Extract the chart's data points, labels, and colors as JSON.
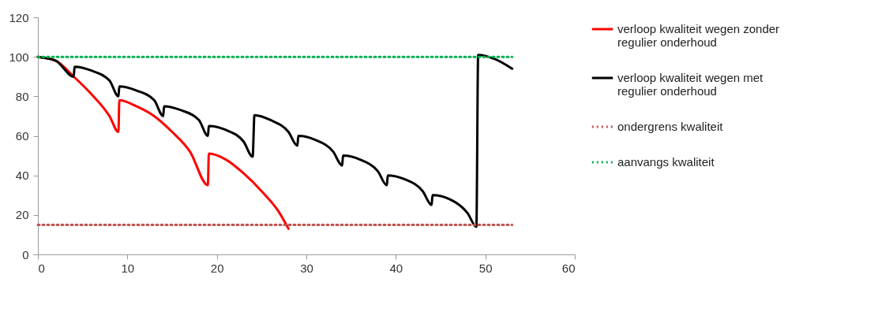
{
  "chart_data": {
    "type": "line",
    "xlim": [
      0,
      60
    ],
    "xticks": [
      0,
      10,
      20,
      30,
      40,
      50,
      60
    ],
    "ylim": [
      0,
      120
    ],
    "yticks": [
      0,
      20,
      40,
      60,
      80,
      100,
      120
    ],
    "grid": false,
    "legend": "right",
    "marker": "none",
    "series": [
      {
        "name": "verloop kwaliteit wegen zonder regulier onderhoud",
        "color": "#ff0000",
        "line_style": "solid",
        "x": [
          0,
          2,
          4,
          6,
          8,
          9,
          9.1,
          11,
          13,
          15,
          17,
          19,
          19.1,
          21,
          23,
          25,
          27,
          28
        ],
        "values": [
          100,
          98,
          90,
          81,
          70,
          62,
          78,
          75,
          70,
          62,
          52,
          35,
          51,
          48,
          41,
          32,
          21,
          13
        ]
      },
      {
        "name": "verloop kwaliteit wegen met regulier onderhoud",
        "color": "#000000",
        "line_style": "solid",
        "x": [
          0,
          2,
          4,
          4.1,
          6,
          8,
          9,
          9.1,
          11,
          13,
          14,
          14.1,
          16,
          18,
          19,
          19.1,
          21,
          23,
          24,
          24.2,
          26,
          28,
          29,
          29.1,
          31,
          33,
          34,
          34.1,
          36,
          38,
          39,
          39.1,
          41,
          43,
          44,
          44.1,
          46,
          48,
          49,
          49.2,
          51,
          53
        ],
        "values": [
          100,
          98,
          90,
          95,
          93,
          88,
          80,
          85,
          83,
          78,
          70,
          75,
          73,
          68,
          60,
          65,
          63,
          57,
          49.5,
          70.5,
          68,
          62,
          55,
          60,
          58,
          52,
          45,
          50,
          48,
          42,
          35,
          40,
          38,
          32,
          25,
          30,
          28,
          21,
          14,
          101,
          99,
          94
        ]
      },
      {
        "name": "ondergrens kwaliteit",
        "color": "#c0504d",
        "line_style": "dotted",
        "x": [
          0,
          53
        ],
        "values": [
          15,
          15
        ]
      },
      {
        "name": "aanvangs kwaliteit",
        "color": "#00b050",
        "line_style": "dotted",
        "x": [
          0,
          53
        ],
        "values": [
          100,
          100
        ]
      }
    ]
  }
}
